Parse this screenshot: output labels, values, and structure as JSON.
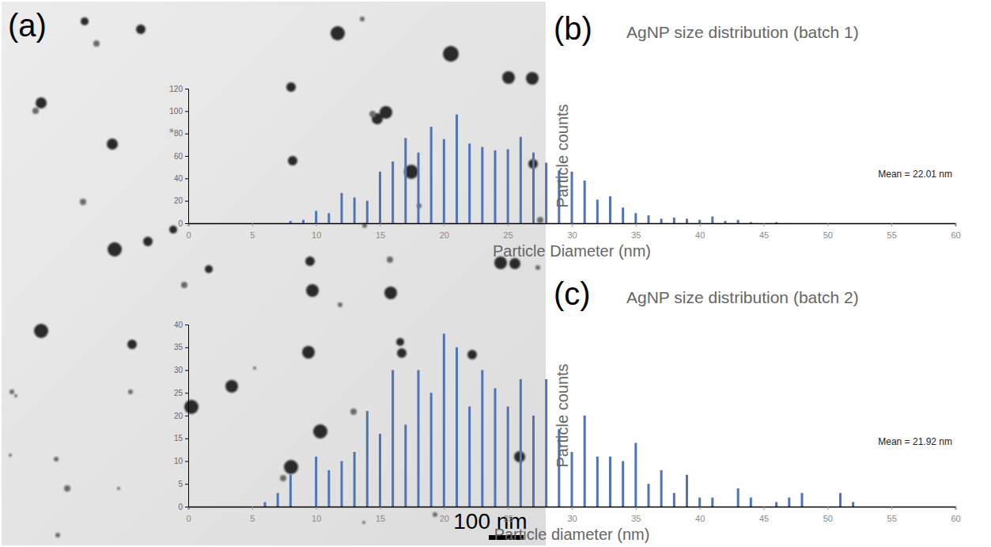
{
  "image": {
    "panel": "(a)",
    "scale_bar": "100 nm"
  },
  "chart_data": [
    {
      "type": "bar",
      "panel": "(b)",
      "title": "AgNP size distribution (batch 1)",
      "x_label": "Particle Diameter (nm)",
      "y_label": "Particle counts",
      "annotations": [
        "Mean = 22.01 nm"
      ],
      "x": [
        8,
        9,
        10,
        11,
        12,
        13,
        14,
        15,
        16,
        17,
        18,
        19,
        20,
        21,
        22,
        23,
        24,
        25,
        26,
        27,
        28,
        29,
        30,
        31,
        32,
        33,
        34,
        35,
        36,
        37,
        38,
        39,
        40,
        41,
        42,
        43,
        44,
        45,
        46
      ],
      "values": [
        2,
        3,
        11,
        9,
        27,
        23,
        20,
        46,
        55,
        76,
        63,
        86,
        75,
        97,
        71,
        68,
        65,
        66,
        77,
        63,
        54,
        47,
        46,
        38,
        21,
        24,
        14,
        9,
        7,
        4,
        5,
        4,
        3,
        6,
        2,
        3,
        1,
        0,
        1
      ],
      "color": "#4f74b8",
      "xlim": [
        0,
        60
      ],
      "xticks": [
        0,
        5,
        10,
        15,
        20,
        25,
        30,
        35,
        40,
        45,
        50,
        55,
        60
      ],
      "ylim": [
        0,
        120
      ],
      "yticks": [
        0,
        20,
        40,
        60,
        80,
        100,
        120
      ],
      "grid": false
    },
    {
      "type": "bar",
      "panel": "(c)",
      "title": "AgNP size distribution (batch 2)",
      "x_label": "Particle diameter (nm)",
      "y_label": "Particle counts",
      "annotations": [
        "Mean = 21.92 nm"
      ],
      "x": [
        6,
        7,
        8,
        9,
        10,
        11,
        12,
        13,
        14,
        15,
        16,
        17,
        18,
        19,
        20,
        21,
        22,
        23,
        24,
        25,
        26,
        27,
        28,
        29,
        30,
        31,
        32,
        33,
        34,
        35,
        36,
        37,
        38,
        39,
        40,
        41,
        42,
        43,
        44,
        45,
        46,
        47,
        48,
        49,
        50,
        51,
        52
      ],
      "values": [
        1,
        3,
        7,
        0,
        11,
        8,
        10,
        12,
        21,
        16,
        30,
        18,
        30,
        25,
        38,
        35,
        22,
        30,
        26,
        22,
        28,
        20,
        28,
        17,
        12,
        20,
        11,
        11,
        10,
        14,
        5,
        8,
        3,
        7,
        2,
        2,
        0,
        4,
        2,
        0,
        1,
        2,
        3,
        0,
        0,
        3,
        1
      ],
      "color": "#4f74b8",
      "xlim": [
        0,
        60
      ],
      "xticks": [
        0,
        5,
        10,
        15,
        20,
        25,
        30,
        35,
        40,
        45,
        50,
        55,
        60
      ],
      "ylim": [
        0,
        40
      ],
      "yticks": [
        0,
        5,
        10,
        15,
        20,
        25,
        30,
        35,
        40
      ],
      "grid": false
    }
  ]
}
